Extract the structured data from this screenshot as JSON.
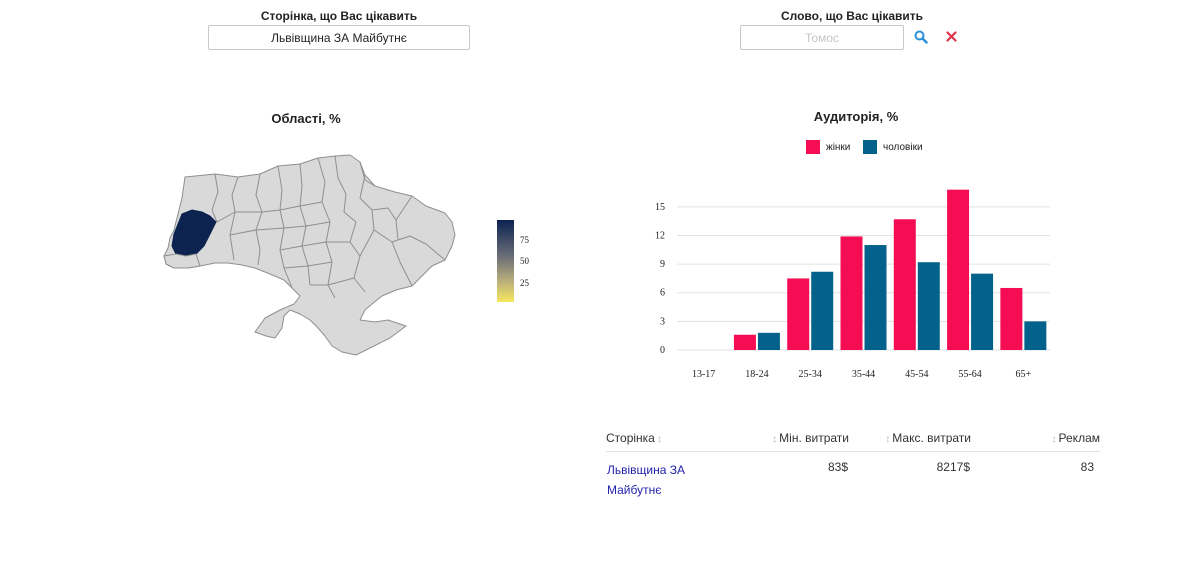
{
  "page_filter": {
    "label": "Сторінка, що Вас цікавить",
    "value": "Львівщина ЗА Майбутнє"
  },
  "word_filter": {
    "label": "Слово, що Вас цікавить",
    "placeholder": "Томос",
    "search_icon": "search-icon",
    "clear_icon": "close-icon"
  },
  "regions_map": {
    "title": "Області, %",
    "highlighted_region": "Львівська",
    "colorbar_ticks": [
      "75",
      "50",
      "25"
    ],
    "colors": {
      "high": "#0c2350",
      "low": "#f4e45c",
      "neutral": "#d8d8d8"
    }
  },
  "chart_data": {
    "type": "bar",
    "title": "Аудиторія, %",
    "categories": [
      "13-17",
      "18-24",
      "25-34",
      "35-44",
      "45-54",
      "55-64",
      "65+"
    ],
    "series": [
      {
        "name": "жінки",
        "color": "#f50d53",
        "values": [
          0,
          1.6,
          7.5,
          11.9,
          13.7,
          16.8,
          6.5
        ]
      },
      {
        "name": "чоловіки",
        "color": "#03628c",
        "values": [
          0,
          1.8,
          8.2,
          11.0,
          9.2,
          8.0,
          3.0
        ]
      }
    ],
    "yticks": [
      0,
      3,
      6,
      9,
      12,
      15
    ],
    "ylim": [
      0,
      17.5
    ],
    "grid": true,
    "legend_position": "top-center"
  },
  "table": {
    "columns": [
      "Сторінка",
      "Мін. витрати",
      "Макс. витрати",
      "Реклам"
    ],
    "rows": [
      {
        "page_line1": "Львівщина ЗА",
        "page_line2": "Майбутнє",
        "min": "83$",
        "max": "8217$",
        "ads": "83"
      }
    ]
  }
}
